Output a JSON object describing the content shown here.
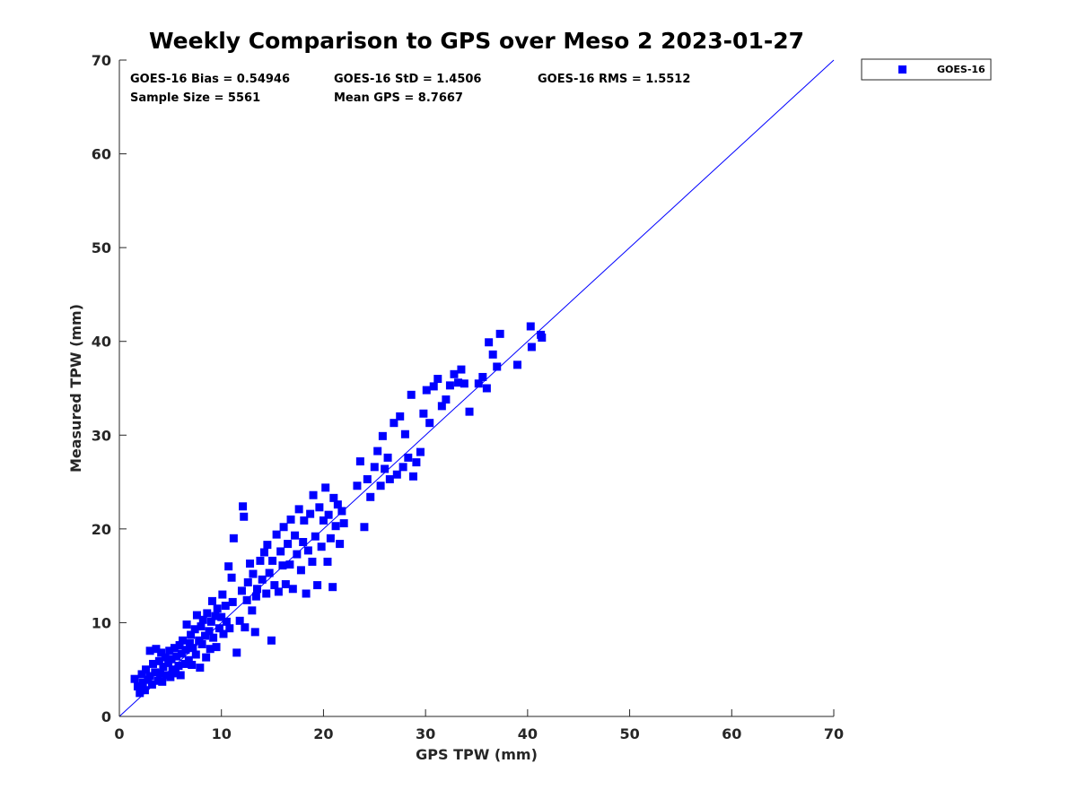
{
  "chart_data": {
    "type": "scatter",
    "title": "Weekly Comparison to GPS over Meso 2 2023-01-27",
    "xlabel": "GPS TPW (mm)",
    "ylabel": "Measured TPW (mm)",
    "xlim": [
      0,
      70
    ],
    "ylim": [
      0,
      70
    ],
    "xticks": [
      "0",
      "10",
      "20",
      "30",
      "40",
      "50",
      "60",
      "70"
    ],
    "yticks": [
      "0",
      "10",
      "20",
      "30",
      "40",
      "50",
      "60",
      "70"
    ],
    "grid": false,
    "legend_position": "outside-top-right",
    "reference_line": {
      "name": "1:1 line",
      "x": [
        0,
        70
      ],
      "y": [
        0,
        70
      ],
      "color": "#0000ff"
    },
    "stats": {
      "bias": "GOES-16 Bias = 0.54946",
      "std": "GOES-16 StD = 1.4506",
      "rms": "GOES-16 RMS = 1.5512",
      "sample_size": "Sample Size = 5561",
      "mean_gps": "Mean GPS = 8.7667"
    },
    "series": [
      {
        "name": "GOES-16",
        "color": "#0000ff",
        "marker": "square",
        "points": [
          [
            1.5,
            4.0
          ],
          [
            1.8,
            3.2
          ],
          [
            2.0,
            2.5
          ],
          [
            2.2,
            4.5
          ],
          [
            2.3,
            3.6
          ],
          [
            2.5,
            2.8
          ],
          [
            2.6,
            5.0
          ],
          [
            2.8,
            3.9
          ],
          [
            3.0,
            7.0
          ],
          [
            3.0,
            4.3
          ],
          [
            3.2,
            3.4
          ],
          [
            3.3,
            5.6
          ],
          [
            3.5,
            4.7
          ],
          [
            3.6,
            7.2
          ],
          [
            3.8,
            3.8
          ],
          [
            3.9,
            5.9
          ],
          [
            4.0,
            4.6
          ],
          [
            4.1,
            6.8
          ],
          [
            4.2,
            3.7
          ],
          [
            4.3,
            5.3
          ],
          [
            4.5,
            6.3
          ],
          [
            4.6,
            4.4
          ],
          [
            4.8,
            5.7
          ],
          [
            4.9,
            7.0
          ],
          [
            5.0,
            4.2
          ],
          [
            5.1,
            6.1
          ],
          [
            5.2,
            5.0
          ],
          [
            5.4,
            7.3
          ],
          [
            5.5,
            4.6
          ],
          [
            5.6,
            6.4
          ],
          [
            5.8,
            5.4
          ],
          [
            5.9,
            7.6
          ],
          [
            6.0,
            4.4
          ],
          [
            6.1,
            6.7
          ],
          [
            6.2,
            8.1
          ],
          [
            6.4,
            5.6
          ],
          [
            6.5,
            7.1
          ],
          [
            6.6,
            9.8
          ],
          [
            6.8,
            6.0
          ],
          [
            6.9,
            7.8
          ],
          [
            7.0,
            8.7
          ],
          [
            7.1,
            5.5
          ],
          [
            7.2,
            7.3
          ],
          [
            7.4,
            9.3
          ],
          [
            7.5,
            6.6
          ],
          [
            7.6,
            10.8
          ],
          [
            7.8,
            8.1
          ],
          [
            7.9,
            5.2
          ],
          [
            8.0,
            9.6
          ],
          [
            8.1,
            7.7
          ],
          [
            8.2,
            10.3
          ],
          [
            8.4,
            8.6
          ],
          [
            8.5,
            6.3
          ],
          [
            8.6,
            11.0
          ],
          [
            8.8,
            9.1
          ],
          [
            8.9,
            7.2
          ],
          [
            9.0,
            10.1
          ],
          [
            9.1,
            12.3
          ],
          [
            9.2,
            8.4
          ],
          [
            9.4,
            10.7
          ],
          [
            9.5,
            7.4
          ],
          [
            9.6,
            11.5
          ],
          [
            9.8,
            9.4
          ],
          [
            10.0,
            10.6
          ],
          [
            10.1,
            13.0
          ],
          [
            10.2,
            8.8
          ],
          [
            10.4,
            11.8
          ],
          [
            10.5,
            10.1
          ],
          [
            10.7,
            16.0
          ],
          [
            10.8,
            9.4
          ],
          [
            11.0,
            14.8
          ],
          [
            11.1,
            12.2
          ],
          [
            11.2,
            19.0
          ],
          [
            11.5,
            6.8
          ],
          [
            11.8,
            10.2
          ],
          [
            12.0,
            13.4
          ],
          [
            12.1,
            22.4
          ],
          [
            12.2,
            21.3
          ],
          [
            12.3,
            9.5
          ],
          [
            12.5,
            12.4
          ],
          [
            12.6,
            14.3
          ],
          [
            12.8,
            16.3
          ],
          [
            13.0,
            11.3
          ],
          [
            13.1,
            15.2
          ],
          [
            13.3,
            9.0
          ],
          [
            13.4,
            12.8
          ],
          [
            13.5,
            13.6
          ],
          [
            13.8,
            16.6
          ],
          [
            14.0,
            14.6
          ],
          [
            14.2,
            17.5
          ],
          [
            14.4,
            13.1
          ],
          [
            14.5,
            18.3
          ],
          [
            14.7,
            15.3
          ],
          [
            14.9,
            8.1
          ],
          [
            15.0,
            16.6
          ],
          [
            15.2,
            14.0
          ],
          [
            15.4,
            19.4
          ],
          [
            15.6,
            13.3
          ],
          [
            15.8,
            17.6
          ],
          [
            16.0,
            16.1
          ],
          [
            16.1,
            20.2
          ],
          [
            16.3,
            14.1
          ],
          [
            16.5,
            18.4
          ],
          [
            16.7,
            16.2
          ],
          [
            16.8,
            21.0
          ],
          [
            17.0,
            13.6
          ],
          [
            17.2,
            19.3
          ],
          [
            17.4,
            17.3
          ],
          [
            17.6,
            22.1
          ],
          [
            17.8,
            15.6
          ],
          [
            18.0,
            18.6
          ],
          [
            18.1,
            20.9
          ],
          [
            18.3,
            13.1
          ],
          [
            18.5,
            17.7
          ],
          [
            18.7,
            21.6
          ],
          [
            18.9,
            16.5
          ],
          [
            19.0,
            23.6
          ],
          [
            19.2,
            19.2
          ],
          [
            19.4,
            14.0
          ],
          [
            19.6,
            22.3
          ],
          [
            19.8,
            18.1
          ],
          [
            20.0,
            20.9
          ],
          [
            20.2,
            24.4
          ],
          [
            20.4,
            16.5
          ],
          [
            20.5,
            21.5
          ],
          [
            20.7,
            19.0
          ],
          [
            20.9,
            13.8
          ],
          [
            21.0,
            23.3
          ],
          [
            21.2,
            20.3
          ],
          [
            21.4,
            22.6
          ],
          [
            21.6,
            18.4
          ],
          [
            21.8,
            21.9
          ],
          [
            22.0,
            20.6
          ],
          [
            23.3,
            24.6
          ],
          [
            23.6,
            27.2
          ],
          [
            24.0,
            20.2
          ],
          [
            24.3,
            25.3
          ],
          [
            24.6,
            23.4
          ],
          [
            25.0,
            26.6
          ],
          [
            25.3,
            28.3
          ],
          [
            25.6,
            24.6
          ],
          [
            25.8,
            29.9
          ],
          [
            26.0,
            26.4
          ],
          [
            26.3,
            27.6
          ],
          [
            26.5,
            25.3
          ],
          [
            26.9,
            31.3
          ],
          [
            27.2,
            25.8
          ],
          [
            27.5,
            32.0
          ],
          [
            27.8,
            26.6
          ],
          [
            28.0,
            30.1
          ],
          [
            28.3,
            27.6
          ],
          [
            28.6,
            34.3
          ],
          [
            28.8,
            25.6
          ],
          [
            29.1,
            27.1
          ],
          [
            29.5,
            28.2
          ],
          [
            29.8,
            32.3
          ],
          [
            30.1,
            34.8
          ],
          [
            30.4,
            31.3
          ],
          [
            30.8,
            35.2
          ],
          [
            31.2,
            36.0
          ],
          [
            31.6,
            33.1
          ],
          [
            32.0,
            33.8
          ],
          [
            32.4,
            35.3
          ],
          [
            32.8,
            36.5
          ],
          [
            33.2,
            35.6
          ],
          [
            33.5,
            37.0
          ],
          [
            33.8,
            35.5
          ],
          [
            34.3,
            32.5
          ],
          [
            35.2,
            35.5
          ],
          [
            35.6,
            36.2
          ],
          [
            36.0,
            35.0
          ],
          [
            36.2,
            39.9
          ],
          [
            36.6,
            38.6
          ],
          [
            37.0,
            37.3
          ],
          [
            37.3,
            40.8
          ],
          [
            39.0,
            37.5
          ],
          [
            40.3,
            41.6
          ],
          [
            40.4,
            39.4
          ],
          [
            41.4,
            40.4
          ],
          [
            41.3,
            40.7
          ]
        ]
      }
    ]
  },
  "legend": {
    "series_label": "GOES-16"
  }
}
